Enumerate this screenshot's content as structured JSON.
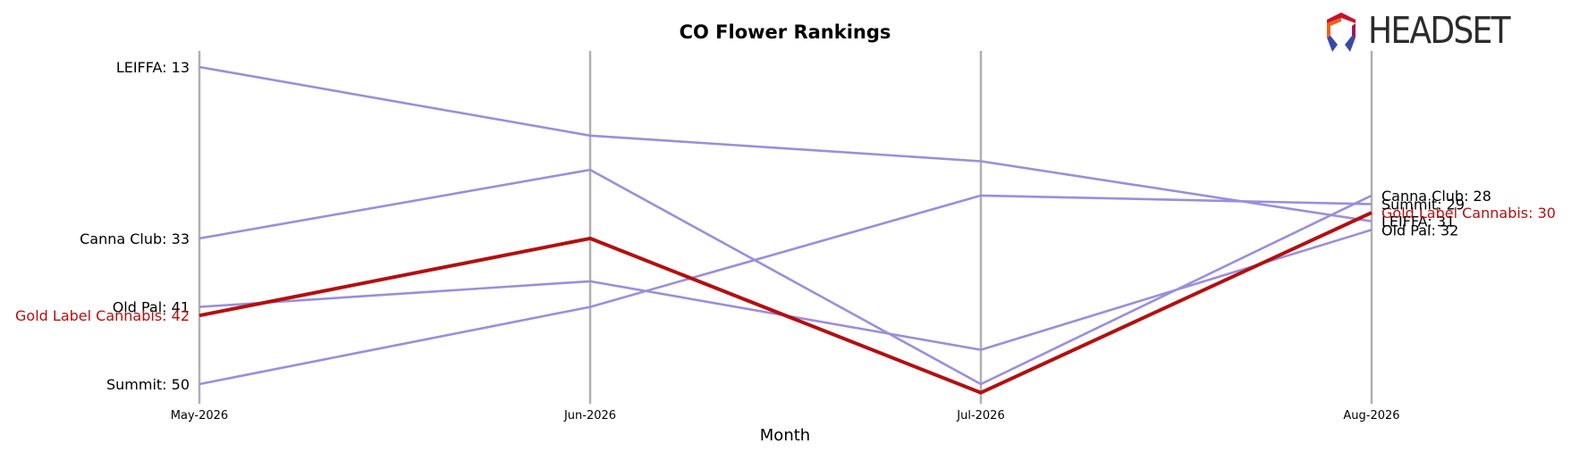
{
  "brand": {
    "logo_text": "HEADSET"
  },
  "chart_data": {
    "type": "line",
    "title": "CO Flower Rankings",
    "xlabel": "Month",
    "ylabel": "",
    "categories": [
      "May-2026",
      "Jun-2026",
      "Jul-2026",
      "Aug-2026"
    ],
    "y_inverted": true,
    "ylim": [
      52,
      11
    ],
    "grid": "vertical",
    "highlight_series": "Gold Label Cannabis",
    "colors": {
      "highlight": "#b30f0f",
      "other": "#9b8edb",
      "gridline": "#b0b0b0"
    },
    "series": [
      {
        "name": "LEIFFA",
        "values": [
          13,
          21,
          24,
          31
        ]
      },
      {
        "name": "Canna Club",
        "values": [
          33,
          25,
          50,
          28
        ]
      },
      {
        "name": "Old Pal",
        "values": [
          41,
          38,
          46,
          32
        ]
      },
      {
        "name": "Gold Label Cannabis",
        "values": [
          42,
          33,
          51,
          30
        ]
      },
      {
        "name": "Summit",
        "values": [
          50,
          41,
          28,
          29
        ]
      }
    ]
  }
}
